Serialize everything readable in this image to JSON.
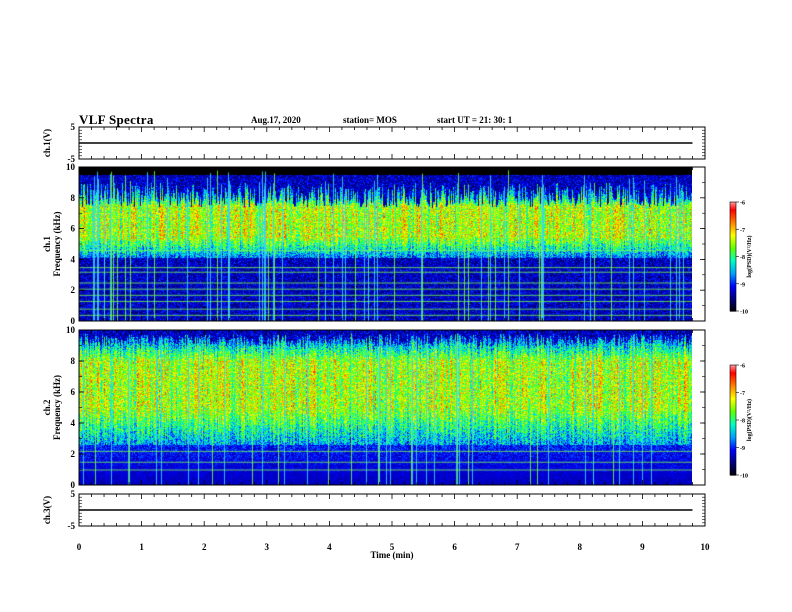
{
  "header": {
    "title": "VLF Spectra",
    "date": "Aug.17, 2020",
    "station": "station= MOS",
    "start_ut": "start  UT  =   21: 30: 1"
  },
  "chart_data": [
    {
      "type": "line",
      "ylabel": "ch.1(V)",
      "ylim": [
        -5,
        5
      ],
      "yticks": [
        "5",
        "-5"
      ],
      "series": [
        {
          "x": [
            0,
            9.8
          ],
          "y": [
            0,
            0
          ]
        }
      ],
      "grid": false
    },
    {
      "type": "heatmap",
      "ylabel": "ch.1\nFrequency (kHz)",
      "ylim": [
        0,
        10
      ],
      "yticks": [
        "10",
        "8",
        "6",
        "4",
        "2",
        "0"
      ],
      "xlim": [
        0,
        10
      ],
      "data_xlim": [
        0,
        9.8
      ],
      "intensity_band_khz": [
        4.5,
        9.0
      ],
      "peak_band_khz": [
        5.5,
        7.5
      ],
      "saturated_above_khz": 9.5,
      "colorbar": {
        "label": "log(PSD)(V²/Hz)",
        "min": -10,
        "max": -6,
        "ticks": [
          "-6",
          "-7",
          "-8",
          "-9",
          "-10"
        ]
      }
    },
    {
      "type": "heatmap",
      "ylabel": "ch.2\nFrequency (kHz)",
      "ylim": [
        0,
        10
      ],
      "yticks": [
        "10",
        "8",
        "6",
        "4",
        "2",
        "0"
      ],
      "xlim": [
        0,
        10
      ],
      "data_xlim": [
        0,
        9.8
      ],
      "intensity_band_khz": [
        3.0,
        9.8
      ],
      "peak_band_khz": [
        5.0,
        8.0
      ],
      "colorbar": {
        "label": "log(PSD)(V²/Hz)",
        "min": -10,
        "max": -6,
        "ticks": [
          "-6",
          "-7",
          "-8",
          "-9",
          "-10"
        ]
      }
    },
    {
      "type": "line",
      "ylabel": "ch.3(V)",
      "ylim": [
        -5,
        5
      ],
      "yticks": [
        "5",
        "-5"
      ],
      "series": [
        {
          "x": [
            0,
            9.8
          ],
          "y": [
            0,
            0
          ]
        }
      ],
      "xlabel": "Time  (min)",
      "xlim": [
        0,
        10
      ],
      "xticks": [
        "0",
        "1",
        "2",
        "3",
        "4",
        "5",
        "6",
        "7",
        "8",
        "9",
        "10"
      ],
      "grid": false
    }
  ],
  "colors": {
    "colormap": [
      "#000000",
      "#00007a",
      "#0000ff",
      "#00a0ff",
      "#00ffc0",
      "#60ff00",
      "#ffff00",
      "#ff8000",
      "#ff0000",
      "#ffffff"
    ],
    "axis": "#000000",
    "trace": "#000000"
  }
}
